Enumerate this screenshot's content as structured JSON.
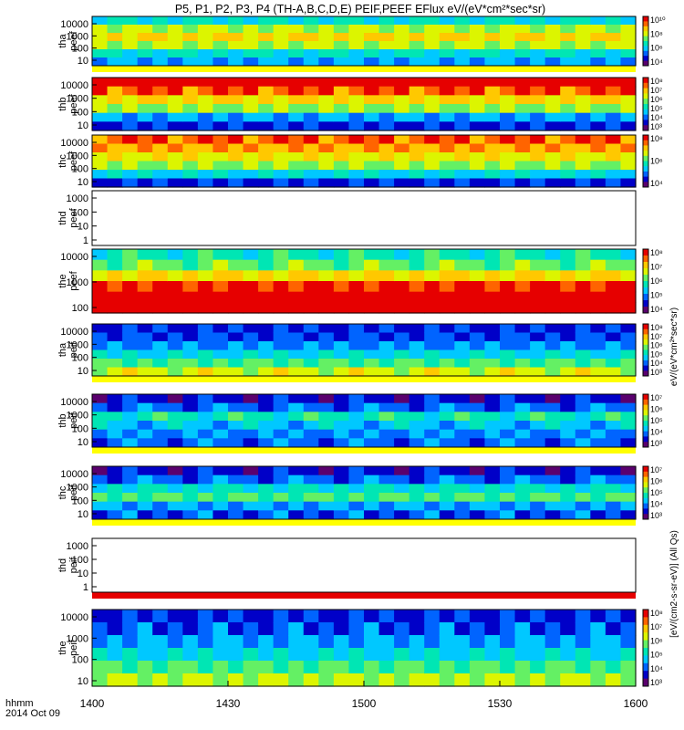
{
  "title": "P5, P1, P2, P3, P4 (TH-A,B,C,D,E) PEIF,PEEF EFlux eV/(eV*cm²*sec*sr)",
  "x_axis": {
    "ticks": [
      "1400",
      "1430",
      "1500",
      "1530",
      "1600"
    ],
    "label_hhmm": "hhmm",
    "label_date": "2014 Oct 09"
  },
  "colorbar_unit_peef": "eV/(eV*cm²*sec*sr)",
  "colorbar_unit_peif": "[eV/(cm2-s-sr-eV)] (All Qs)",
  "palette": [
    "#5a006e",
    "#0000c8",
    "#0064ff",
    "#00c8ff",
    "#00e6b4",
    "#64f064",
    "#dcf500",
    "#ffc800",
    "#ff6400",
    "#e60000"
  ],
  "chart_data": [
    {
      "type": "heatmap",
      "probe": "tha",
      "product": "peef",
      "ylabel": [
        "tha",
        "peef"
      ],
      "yticks": [
        "10",
        "100",
        "1000",
        "10000"
      ],
      "x_range": [
        "1400",
        "1600"
      ],
      "colorbar": {
        "ticks": [
          "10⁴",
          "10⁶",
          "10⁸",
          "10¹⁰"
        ]
      },
      "profile": [
        3.5,
        5.5,
        6.5,
        5.5,
        3.5,
        2.5
      ],
      "bottom_band": "yellow"
    },
    {
      "type": "heatmap",
      "probe": "thb",
      "product": "peef",
      "ylabel": [
        "thb",
        "peef"
      ],
      "yticks": [
        "10",
        "100",
        "1000",
        "10000"
      ],
      "x_range": [
        "1400",
        "1600"
      ],
      "colorbar": {
        "ticks": [
          "10³",
          "10⁴",
          "10⁵",
          "10⁶",
          "10⁷",
          "10⁸"
        ]
      },
      "profile": [
        9.6,
        8.2,
        6.6,
        5.4,
        2.6,
        1.4
      ]
    },
    {
      "type": "heatmap",
      "probe": "thc",
      "product": "peef",
      "ylabel": [
        "thc",
        "peef"
      ],
      "yticks": [
        "10",
        "100",
        "1000",
        "10000"
      ],
      "x_range": [
        "1400",
        "1600"
      ],
      "colorbar": {
        "ticks": [
          "10⁴",
          "10⁶",
          "10⁸"
        ]
      },
      "profile": [
        8.2,
        7.2,
        6.2,
        5.2,
        3.2,
        1.2
      ]
    },
    {
      "type": "heatmap",
      "probe": "thd",
      "product": "peef",
      "ylabel": [
        "thd",
        "peef"
      ],
      "yticks": [
        "1",
        "10",
        "100",
        "1000"
      ],
      "x_range": [
        "1400",
        "1600"
      ],
      "empty": true
    },
    {
      "type": "heatmap",
      "probe": "the",
      "product": "peef",
      "ylabel": [
        "the",
        "peef"
      ],
      "yticks": [
        "100",
        "1000",
        "10000"
      ],
      "x_range": [
        "1400",
        "1600"
      ],
      "colorbar": {
        "ticks": [
          "10⁴",
          "10⁵",
          "10⁶",
          "10⁷",
          "10⁸"
        ]
      },
      "profile": [
        4,
        5,
        6.5,
        8.5,
        9.4,
        9.6
      ]
    },
    {
      "type": "heatmap",
      "probe": "tha",
      "product": "peif",
      "ylabel": [
        "tha",
        "peif"
      ],
      "yticks": [
        "10",
        "100",
        "1000",
        "10000"
      ],
      "x_range": [
        "1400",
        "1600"
      ],
      "colorbar": {
        "ticks": [
          "10³",
          "10⁴",
          "10⁵",
          "10⁶",
          "10⁷",
          "10⁸"
        ]
      },
      "profile": [
        1.2,
        1.6,
        2.4,
        3.2,
        4.5,
        6
      ],
      "bottom_band": "yellow"
    },
    {
      "type": "heatmap",
      "probe": "thb",
      "product": "peif",
      "ylabel": [
        "thb",
        "peif"
      ],
      "yticks": [
        "10",
        "100",
        "1000",
        "10000"
      ],
      "x_range": [
        "1400",
        "1600"
      ],
      "colorbar": {
        "ticks": [
          "10³",
          "10⁴",
          "10⁵",
          "10⁶",
          "10⁷"
        ]
      },
      "profile": [
        1,
        2,
        4,
        3,
        2.4,
        2
      ],
      "bottom_band": "yellow"
    },
    {
      "type": "heatmap",
      "probe": "thc",
      "product": "peif",
      "ylabel": [
        "thc",
        "peif"
      ],
      "yticks": [
        "10",
        "100",
        "1000",
        "10000"
      ],
      "x_range": [
        "1400",
        "1600"
      ],
      "colorbar": {
        "ticks": [
          "10³",
          "10⁴",
          "10⁵",
          "10⁶",
          "10⁷"
        ]
      },
      "profile": [
        1,
        2,
        3.5,
        4.5,
        2.6,
        1.8
      ],
      "bottom_band": "yellow"
    },
    {
      "type": "heatmap",
      "probe": "thd",
      "product": "peif",
      "ylabel": [
        "thd",
        "peif"
      ],
      "yticks": [
        "1",
        "10",
        "100",
        "1000"
      ],
      "x_range": [
        "1400",
        "1600"
      ],
      "empty": true,
      "bottom_band": "red"
    },
    {
      "type": "heatmap",
      "probe": "the",
      "product": "peif",
      "ylabel": [
        "the",
        "peif"
      ],
      "yticks": [
        "10",
        "100",
        "1000",
        "10000"
      ],
      "x_range": [
        "1400",
        "1600"
      ],
      "colorbar": {
        "ticks": [
          "10³",
          "10⁴",
          "10⁵",
          "10⁶",
          "10⁷",
          "10⁸"
        ]
      },
      "profile": [
        1.2,
        1.8,
        2.6,
        3.4,
        4.5,
        5.6
      ]
    }
  ]
}
